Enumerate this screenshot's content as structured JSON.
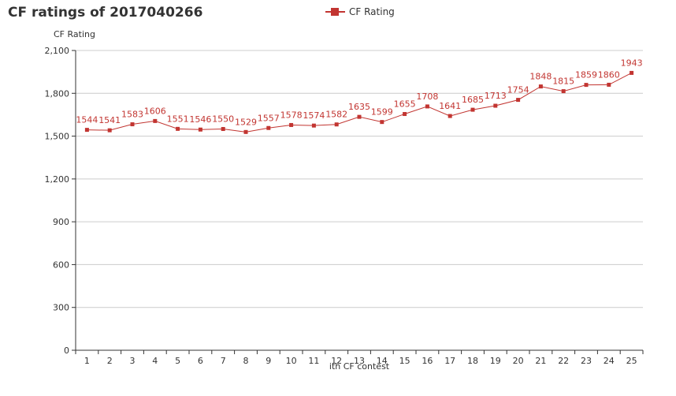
{
  "chart_data": {
    "type": "line",
    "title": "CF ratings of 2017040266",
    "xlabel": "ith CF contest",
    "ylabel": "CF Rating",
    "categories": [
      "1",
      "2",
      "3",
      "4",
      "5",
      "6",
      "7",
      "8",
      "9",
      "10",
      "11",
      "12",
      "13",
      "14",
      "15",
      "16",
      "17",
      "18",
      "19",
      "20",
      "21",
      "22",
      "23",
      "24",
      "25"
    ],
    "series": [
      {
        "name": "CF Rating",
        "values": [
          1544,
          1541,
          1583,
          1606,
          1551,
          1546,
          1550,
          1529,
          1557,
          1578,
          1574,
          1582,
          1635,
          1599,
          1655,
          1708,
          1641,
          1685,
          1713,
          1754,
          1848,
          1815,
          1859,
          1860,
          1943
        ]
      }
    ],
    "ylim": [
      0,
      2100
    ],
    "yticks": [
      0,
      300,
      600,
      900,
      1200,
      1500,
      1800,
      2100
    ],
    "ytick_labels": [
      "0",
      "300",
      "600",
      "900",
      "1,200",
      "1,500",
      "1,800",
      "2,100"
    ],
    "grid": true,
    "legend_position": "top-center",
    "colors": {
      "series": "#c23531",
      "grid": "#cccccc",
      "axis": "#333333"
    }
  }
}
